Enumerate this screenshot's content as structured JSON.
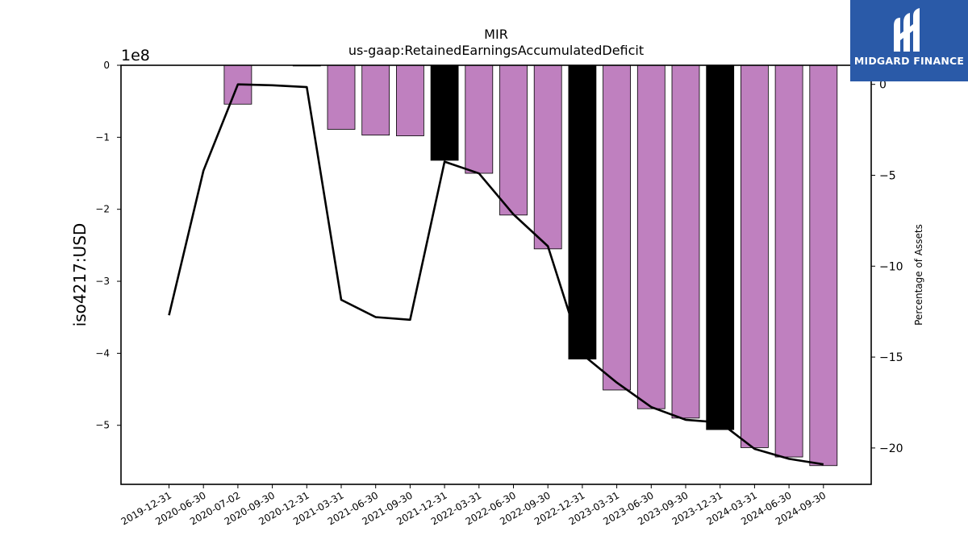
{
  "brand": {
    "name": "MIDGARD FINANCE",
    "logo_icon": "midgard-m-logo-icon",
    "bg_color": "#2a5aa8"
  },
  "chart_data": {
    "type": "bar",
    "title": "MIR",
    "subtitle": "us-gaap:RetainedEarningsAccumulatedDeficit",
    "ylabel": "iso4217:USD",
    "y_offset_label": "1e8",
    "y2label": "Percentage of Assets",
    "ylim": [
      -5.82,
      0
    ],
    "y2lim": [
      -22.0,
      1.05
    ],
    "yticks": [
      0,
      -1,
      -2,
      -3,
      -4,
      -5
    ],
    "y2ticks": [
      0,
      -5,
      -10,
      -15,
      -20
    ],
    "categories": [
      "2019-12-31",
      "2020-06-30",
      "2020-07-02",
      "2020-09-30",
      "2020-12-31",
      "2021-03-31",
      "2021-06-30",
      "2021-09-30",
      "2021-12-31",
      "2022-03-31",
      "2022-06-30",
      "2022-09-30",
      "2022-12-31",
      "2023-03-31",
      "2023-06-30",
      "2023-09-30",
      "2023-12-31",
      "2024-03-31",
      "2024-06-30",
      "2024-09-30"
    ],
    "series": [
      {
        "role": "bars",
        "values": [
          0,
          0,
          -0.54,
          0,
          -0.01,
          -0.89,
          -0.97,
          -0.98,
          -1.32,
          -1.5,
          -2.08,
          -2.55,
          -4.08,
          -4.51,
          -4.77,
          -4.9,
          -5.06,
          -5.31,
          -5.44,
          -5.56
        ],
        "colors": [
          "#bf80bf",
          "#bf80bf",
          "#bf80bf",
          "#bf80bf",
          "#bf80bf",
          "#bf80bf",
          "#bf80bf",
          "#bf80bf",
          "#000000",
          "#bf80bf",
          "#bf80bf",
          "#bf80bf",
          "#000000",
          "#bf80bf",
          "#bf80bf",
          "#bf80bf",
          "#000000",
          "#bf80bf",
          "#bf80bf",
          "#bf80bf"
        ]
      },
      {
        "role": "line",
        "axis": "right",
        "color": "#000000",
        "values": [
          -12.7,
          -4.75,
          0.0,
          -0.05,
          -0.15,
          -11.85,
          -12.8,
          -12.95,
          -4.25,
          -4.9,
          -7.15,
          -8.9,
          -14.85,
          -16.4,
          -17.75,
          -18.45,
          -18.6,
          -20.05,
          -20.6,
          -20.9
        ]
      }
    ],
    "grid": false
  }
}
